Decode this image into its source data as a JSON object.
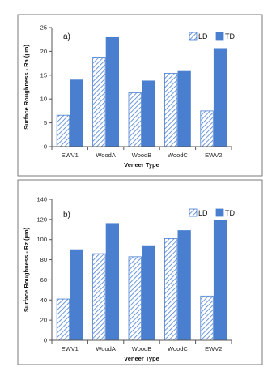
{
  "colors": {
    "solid": "#4a7fd0",
    "hatch": "#4a7fd0",
    "axis": "#555555",
    "border": "#7a7a7a"
  },
  "chart_data": [
    {
      "type": "bar",
      "panel_label": "a)",
      "categories": [
        "EWV1",
        "WoodA",
        "WoodB",
        "WoodC",
        "EWV2"
      ],
      "series": [
        {
          "name": "LD",
          "style": "hatched",
          "values": [
            6.6,
            18.8,
            11.3,
            15.4,
            7.5
          ]
        },
        {
          "name": "TD",
          "style": "solid",
          "values": [
            14.0,
            22.9,
            13.8,
            15.8,
            20.6
          ]
        }
      ],
      "xlabel": "Veneer Type",
      "ylabel": "Surface Roughness - Ra (µm)",
      "ylim": [
        0,
        25
      ],
      "yticks": [
        0,
        5,
        10,
        15,
        20,
        25
      ],
      "legend": "top-right",
      "grid": false
    },
    {
      "type": "bar",
      "panel_label": "b)",
      "categories": [
        "EWV1",
        "WoodA",
        "WoodB",
        "WoodC",
        "EWV2"
      ],
      "series": [
        {
          "name": "LD",
          "style": "hatched",
          "values": [
            41,
            86,
            83,
            101,
            44
          ]
        },
        {
          "name": "TD",
          "style": "solid",
          "values": [
            90,
            116,
            94,
            109,
            119
          ]
        }
      ],
      "xlabel": "Veneer Type",
      "ylabel": "Surface Roughness - Rz (µm)",
      "ylim": [
        0,
        140
      ],
      "yticks": [
        0,
        20,
        40,
        60,
        80,
        100,
        120,
        140
      ],
      "legend": "top-right",
      "grid": false
    }
  ]
}
